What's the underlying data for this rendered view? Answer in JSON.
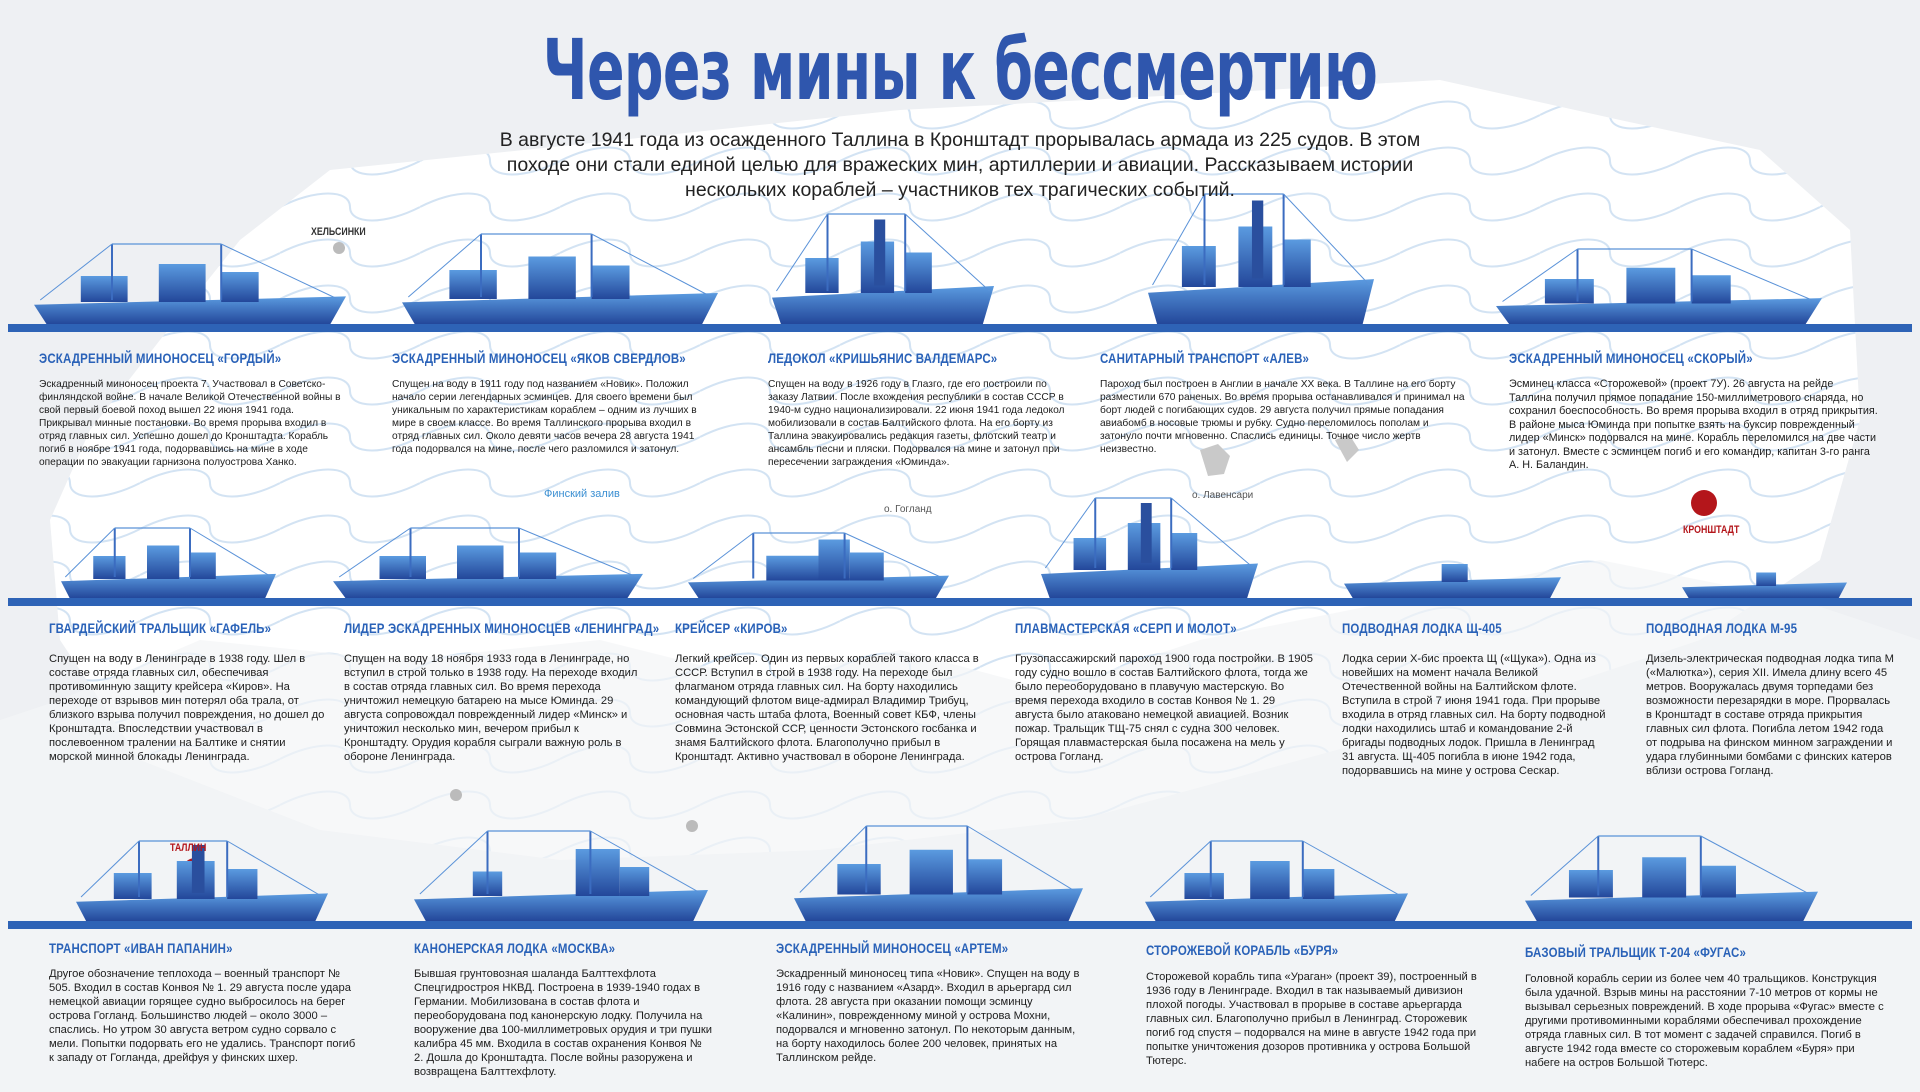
{
  "title": "Через мины к бессмертию",
  "subtitle": "В августе 1941 года из осажденного Таллина в Кронштадт прорывалась армада из 225 судов. В этом походе они стали единой целью для вражеских мин, артиллерии и авиации. Рассказываем истории нескольких кораблей – участников тех трагических событий.",
  "map_labels": [
    "ХЕЛЬСИНКИ",
    "Финский залив",
    "о. Гогланд",
    "о. Лавенсари",
    "КРОНШТАДТ",
    "ТАЛЛИН"
  ],
  "ships": [
    {
      "name": "ЭСКАДРЕННЫЙ МИНОНОСЕЦ «ГОРДЫЙ»",
      "text": "Эскадренный миноносец проекта 7. Участвовал в Советско-финляндской войне. В начале Великой Отечественной войны в свой первый боевой поход вышел 22 июня 1941 года. Прикрывал минные постановки. Во время прорыва входил в отряд главных сил. Успешно дошел до Кронштадта. Корабль погиб в ноябре 1941 года, подорвавшись на мине в ходе операции по эвакуации гарнизона полуострова Ханко."
    },
    {
      "name": "ЭСКАДРЕННЫЙ МИНОНОСЕЦ «ЯКОВ СВЕРДЛОВ»",
      "text": "Спущен на воду в 1911 году под названием «Новик». Положил начало серии легендарных эсминцев. Для своего времени был уникальным по характеристикам кораблем – одним из лучших в мире в своем классе. Во время Таллинского прорыва входил в отряд главных сил. Около девяти часов вечера 28 августа 1941 года подорвался на мине, после чего разломился и затонул."
    },
    {
      "name": "ЛЕДОКОЛ «КРИШЬЯНИС ВАЛДЕМАРС»",
      "text": "Спущен на воду в 1926 году в Глазго, где его построили по заказу Латвии. После вхождения республики в состав СССР в 1940-м судно национализировали. 22 июня 1941 года ледокол мобилизовали в состав Балтийского флота. На его борту из Таллина эвакуировались редакция газеты, флотский театр и ансамбль песни и пляски. Подорвался на мине и затонул при пересечении заграждения «Юминда»."
    },
    {
      "name": "САНИТАРНЫЙ ТРАНСПОРТ «АЛЕВ»",
      "text": "Пароход был построен в Англии в начале XX века. В Таллине на его борту разместили 670 раненых. Во время прорыва останавливался и принимал на борт людей с погибающих судов. 29 августа получил прямые попадания авиабомб в носовые трюмы и рубку. Судно переломилось пополам и затонуло почти мгновенно. Спаслись единицы. Точное число жертв неизвестно."
    },
    {
      "name": "ЭСКАДРЕННЫЙ МИНОНОСЕЦ «СКОРЫЙ»",
      "text": "Эсминец класса «Сторожевой» (проект 7У). 26 августа на рейде Таллина получил прямое попадание 150-миллиметрового снаряда, но сохранил боеспособность. Во время прорыва входил в отряд прикрытия. В районе мыса Юминда при попытке взять на буксир поврежденный лидер «Минск» подорвался на мине. Корабль переломился на две части и затонул. Вместе с эсминцем погиб и его командир, капитан 3-го ранга А. Н. Баландин."
    },
    {
      "name": "ГВАРДЕЙСКИЙ ТРАЛЬЩИК «ГАФЕЛЬ»",
      "text": "Спущен на воду в Ленинграде в 1938 году. Шел в составе отряда главных сил, обеспечивая противоминную защиту крейсера «Киров». На переходе от взрывов мин потерял оба трала, от близкого взрыва получил повреждения, но дошел до Кронштадта. Впоследствии участвовал в послевоенном тралении на Балтике и снятии морской минной блокады Ленинграда."
    },
    {
      "name": "ЛИДЕР ЭСКАДРЕННЫХ МИНОНОСЦЕВ «ЛЕНИНГРАД»",
      "text": "Спущен на воду 18 ноября 1933 года в Ленинграде, но вступил в строй только в 1938 году. На переходе входил в состав отряда главных сил. Во время перехода уничтожил немецкую батарею на мысе Юминда. 29 августа сопровождал поврежденный лидер «Минск» и уничтожил несколько мин, вечером прибыл к Кронштадту. Орудия корабля сыграли важную роль в обороне Ленинграда."
    },
    {
      "name": "КРЕЙСЕР «КИРОВ»",
      "text": "Легкий крейсер. Один из первых кораблей такого класса в СССР. Вступил в строй в 1938 году. На переходе был флагманом отряда главных сил. На борту находились командующий флотом вице-адмирал Владимир Трибуц, основная часть штаба флота, Военный совет КБФ, члены Совмина Эстонской ССР, ценности Эстонского госбанка и знамя Балтийского флота. Благополучно прибыл в Кронштадт. Активно участвовал в обороне Ленинграда."
    },
    {
      "name": "ПЛАВМАСТЕРСКАЯ «СЕРП И МОЛОТ»",
      "text": "Грузопассажирский пароход 1900 года постройки. В 1905 году судно вошло в состав Балтийского флота, тогда же было переоборудовано в плавучую мастерскую. Во время перехода входило в состав Конвоя № 1. 29 августа было атаковано немецкой авиацией. Возник пожар. Тральщик ТЩ-75 снял с судна 300 человек. Горящая плавмастерская была посажена на мель у острова Гогланд."
    },
    {
      "name": "ПОДВОДНАЯ ЛОДКА Щ-405",
      "text": "Лодка серии Х-бис проекта Щ («Щука»). Одна из новейших на момент начала Великой Отечественной войны на Балтийском флоте. Вступила в строй 7 июня 1941 года. При прорыве входила в отряд главных сил. На борту подводной лодки находились штаб и командование 2-й бригады подводных лодок. Пришла в Ленинград 31 августа. Щ-405 погибла в июне 1942 года, подорвавшись на мине у острова Сескар."
    },
    {
      "name": "ПОДВОДНАЯ ЛОДКА М-95",
      "text": "Дизель-электрическая подводная лодка типа М («Малютка»), серия XII. Имела длину всего 45 метров. Вооружалась двумя торпедами без возможности перезарядки в море. Прорвалась в Кронштадт в составе отряда прикрытия главных сил флота. Погибла летом 1942 года от подрыва на финском минном заграждении и удара глубинными бомбами с финских катеров вблизи острова Гогланд."
    },
    {
      "name": "ТРАНСПОРТ «ИВАН ПАПАНИН»",
      "text": "Другое обозначение теплохода – военный транспорт № 505. Входил в состав Конвоя № 1. 29 августа после удара немецкой авиации горящее судно выбросилось на берег острова Гогланд. Большинство людей – около 3000 – спаслись. Но утром 30 августа ветром судно сорвало с мели. Попытки подорвать его не удались. Транспорт погиб к западу от Гогланда, дрейфуя у финских шхер."
    },
    {
      "name": "КАНОНЕРСКАЯ ЛОДКА «МОСКВА»",
      "text": "Бывшая грунтовозная шаланда Балттехфлота Спецгидростроя НКВД. Построена в 1939-1940 годах в Германии. Мобилизована в состав флота и переоборудована под канонерскую лодку. Получила на вооружение два 100-миллиметровых орудия и три пушки калибра 45 мм. Входила в состав охранения Конвоя № 2. Дошла до Кронштадта. После войны разоружена и возвращена Балттехфлоту."
    },
    {
      "name": "ЭСКАДРЕННЫЙ МИНОНОСЕЦ «АРТЕМ»",
      "text": "Эскадренный миноносец типа «Новик». Спущен на воду в 1916 году с названием «Азард». Входил в арьергард сил флота. 28 августа при оказании помощи эсминцу «Калинин», поврежденному миной у острова Мохни, подорвался и мгновенно затонул. По некоторым данным, на борту находилось более 200 человек, принятых на Таллинском рейде."
    },
    {
      "name": "СТОРОЖЕВОЙ КОРАБЛЬ «БУРЯ»",
      "text": "Сторожевой корабль типа «Ураган» (проект 39), построенный в 1936 году в Ленинграде. Входил в так называемый дивизион плохой погоды. Участвовал в прорыве в составе арьергарда главных сил. Благополучно прибыл в Ленинград. Сторожевик погиб год спустя – подорвался на мине в августе 1942 года при попытке уничтожения дозоров противника у острова Большой Тютерс."
    },
    {
      "name": "БАЗОВЫЙ ТРАЛЬЩИК Т-204 «ФУГАС»",
      "text": "Головной корабль серии из более чем 40 тральщиков. Конструкция была удачной. Взрыв мины на расстоянии 7-10 метров от кормы не вызывал серьезных повреждений. В ходе прорыва «Фугас» вместе с другими противоминными кораблями обеспечивал прохождение отряда главных сил. В тот момент с задачей справился. Погиб в августе 1942 года вместе со сторожевым кораблем «Буря» при набеге на остров Большой Тютерс."
    }
  ]
}
